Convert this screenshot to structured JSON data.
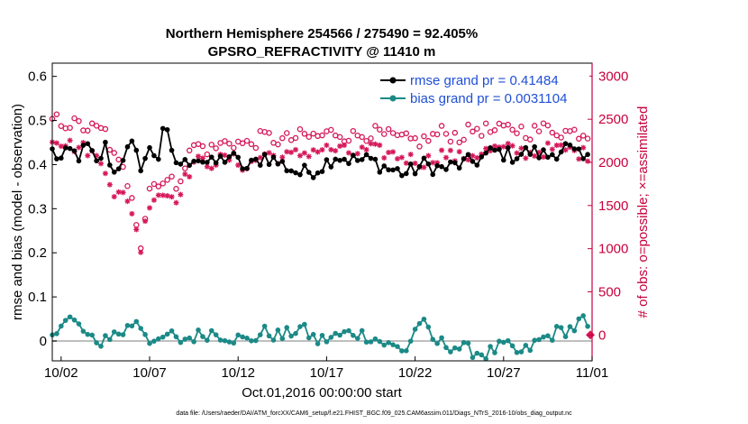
{
  "chart_data": {
    "type": "line",
    "title": "Northern Hemisphere 254566 / 275490 = 92.405%",
    "subtitle": "GPSRO_REFRACTIVITY @ 11410 m",
    "ylabel": "rmse and bias (model - observation)",
    "ylabel_right": "# of obs: o=possible; ×=assimilated",
    "xlabel": "Oct.01,2016 00:00:00 start",
    "footnote": "data file: /Users/raeder/DAI/ATM_forcXX/CAM6_setup/f.e21.FHIST_BGC.f09_025.CAM6assim.011/Diags_NTrS_2016-10/obs_diag_output.nc",
    "x_tick_labels": [
      "10/02",
      "10/07",
      "10/12",
      "10/17",
      "10/22",
      "10/27",
      "11/01"
    ],
    "x_tick_days": [
      1.5,
      6.5,
      11.5,
      16.5,
      21.5,
      26.5,
      31.5
    ],
    "xlim_days": [
      1,
      31.5
    ],
    "ylim": [
      -0.045,
      0.63
    ],
    "y_ticks": [
      0,
      0.1,
      0.2,
      0.3,
      0.4,
      0.5,
      0.6
    ],
    "y_tick_labels": [
      "0",
      "0.1",
      "0.2",
      "0.3",
      "0.4",
      "0.5",
      "0.6"
    ],
    "ylim_right": [
      -300,
      3150
    ],
    "y_ticks_right": [
      0,
      500,
      1000,
      1500,
      2000,
      2500,
      3000
    ],
    "y_tick_labels_right": [
      "0",
      "500",
      "1000",
      "1500",
      "2000",
      "2500",
      "3000"
    ],
    "grid": false,
    "legend": "top-right",
    "colors": {
      "rmse": "#000000",
      "bias": "#1b8a87",
      "obs": "#d6175a",
      "zero_line": "#bfbfbf",
      "right_axis": "#c8003c",
      "legend_text": "#1f4fd6"
    },
    "series": [
      {
        "name": "rmse grand pr = 0.41484",
        "axis": "left",
        "anchors": [
          [
            1.0,
            0.43
          ],
          [
            1.5,
            0.41
          ],
          [
            2.0,
            0.43
          ],
          [
            2.5,
            0.42
          ],
          [
            3.0,
            0.44
          ],
          [
            3.5,
            0.4
          ],
          [
            4.0,
            0.44
          ],
          [
            4.5,
            0.38
          ],
          [
            5.0,
            0.42
          ],
          [
            5.5,
            0.44
          ],
          [
            6.0,
            0.4
          ],
          [
            6.5,
            0.43
          ],
          [
            7.0,
            0.42
          ],
          [
            7.3,
            0.5
          ],
          [
            7.8,
            0.41
          ],
          [
            8.5,
            0.4
          ],
          [
            9.0,
            0.42
          ],
          [
            10.0,
            0.4
          ],
          [
            11.0,
            0.42
          ],
          [
            12.0,
            0.39
          ],
          [
            13.0,
            0.42
          ],
          [
            14.0,
            0.4
          ],
          [
            15.0,
            0.38
          ],
          [
            16.0,
            0.39
          ],
          [
            17.0,
            0.42
          ],
          [
            18.0,
            0.41
          ],
          [
            19.0,
            0.41
          ],
          [
            20.0,
            0.39
          ],
          [
            21.0,
            0.38
          ],
          [
            22.0,
            0.4
          ],
          [
            23.0,
            0.39
          ],
          [
            24.0,
            0.4
          ],
          [
            25.0,
            0.41
          ],
          [
            26.0,
            0.43
          ],
          [
            27.0,
            0.42
          ],
          [
            28.0,
            0.43
          ],
          [
            29.0,
            0.42
          ],
          [
            30.0,
            0.44
          ],
          [
            31.0,
            0.41
          ],
          [
            31.4,
            0.41
          ]
        ]
      },
      {
        "name": "bias grand pr = 0.0031104",
        "axis": "left",
        "anchors": [
          [
            1.0,
            0.02
          ],
          [
            1.4,
            0.04
          ],
          [
            2.0,
            0.05
          ],
          [
            2.6,
            0.03
          ],
          [
            3.0,
            0.01
          ],
          [
            3.5,
            -0.01
          ],
          [
            4.0,
            0.01
          ],
          [
            5.0,
            0.02
          ],
          [
            5.8,
            0.05
          ],
          [
            6.4,
            0.01
          ],
          [
            7.0,
            -0.01
          ],
          [
            7.6,
            0.02
          ],
          [
            8.0,
            0.0
          ],
          [
            9.0,
            0.01
          ],
          [
            10.0,
            0.02
          ],
          [
            11.0,
            0.01
          ],
          [
            12.0,
            0.0
          ],
          [
            13.0,
            0.02
          ],
          [
            14.0,
            0.01
          ],
          [
            15.0,
            0.03
          ],
          [
            16.0,
            0.0
          ],
          [
            17.0,
            0.01
          ],
          [
            18.0,
            0.02
          ],
          [
            19.0,
            0.01
          ],
          [
            20.0,
            -0.01
          ],
          [
            21.0,
            -0.02
          ],
          [
            21.8,
            0.05
          ],
          [
            22.5,
            0.0
          ],
          [
            23.5,
            -0.01
          ],
          [
            24.5,
            -0.02
          ],
          [
            25.5,
            -0.03
          ],
          [
            26.5,
            -0.01
          ],
          [
            27.5,
            -0.03
          ],
          [
            28.5,
            0.0
          ],
          [
            29.5,
            0.02
          ],
          [
            30.5,
            0.03
          ],
          [
            31.0,
            0.05
          ],
          [
            31.4,
            0.0
          ]
        ]
      },
      {
        "name": "possible",
        "axis": "right",
        "anchors": [
          [
            1.0,
            2500
          ],
          [
            2.0,
            2450
          ],
          [
            3.0,
            2400
          ],
          [
            4.0,
            2350
          ],
          [
            4.5,
            2050
          ],
          [
            5.0,
            1900
          ],
          [
            5.5,
            1650
          ],
          [
            6.0,
            1050
          ],
          [
            6.5,
            1700
          ],
          [
            7.0,
            1800
          ],
          [
            8.0,
            1750
          ],
          [
            9.0,
            2200
          ],
          [
            10.0,
            2150
          ],
          [
            11.0,
            2250
          ],
          [
            12.0,
            2200
          ],
          [
            13.0,
            2300
          ],
          [
            14.0,
            2250
          ],
          [
            15.0,
            2300
          ],
          [
            16.0,
            2300
          ],
          [
            17.0,
            2350
          ],
          [
            18.0,
            2300
          ],
          [
            19.0,
            2350
          ],
          [
            20.0,
            2300
          ],
          [
            21.0,
            2250
          ],
          [
            22.0,
            2250
          ],
          [
            23.0,
            2350
          ],
          [
            24.0,
            2300
          ],
          [
            25.0,
            2400
          ],
          [
            26.0,
            2350
          ],
          [
            27.0,
            2400
          ],
          [
            28.0,
            2350
          ],
          [
            29.0,
            2400
          ],
          [
            30.0,
            2350
          ],
          [
            31.0,
            2350
          ],
          [
            31.4,
            2300
          ]
        ]
      },
      {
        "name": "assimilated",
        "axis": "right",
        "anchors": [
          [
            1.0,
            2300
          ],
          [
            2.0,
            2200
          ],
          [
            3.0,
            2150
          ],
          [
            4.0,
            1950
          ],
          [
            4.5,
            1650
          ],
          [
            5.0,
            1600
          ],
          [
            5.5,
            1450
          ],
          [
            6.0,
            1000
          ],
          [
            6.5,
            1550
          ],
          [
            7.0,
            1650
          ],
          [
            8.0,
            1600
          ],
          [
            9.0,
            2000
          ],
          [
            10.0,
            2000
          ],
          [
            11.0,
            2050
          ],
          [
            12.0,
            1950
          ],
          [
            13.0,
            2100
          ],
          [
            14.0,
            2050
          ],
          [
            15.0,
            2100
          ],
          [
            16.0,
            2150
          ],
          [
            17.0,
            2150
          ],
          [
            18.0,
            2100
          ],
          [
            19.0,
            2150
          ],
          [
            20.0,
            2100
          ],
          [
            21.0,
            2050
          ],
          [
            22.0,
            2000
          ],
          [
            23.0,
            2100
          ],
          [
            24.0,
            2050
          ],
          [
            25.0,
            2100
          ],
          [
            26.0,
            2150
          ],
          [
            27.0,
            2150
          ],
          [
            28.0,
            2100
          ],
          [
            29.0,
            2150
          ],
          [
            30.0,
            2150
          ],
          [
            31.0,
            2100
          ],
          [
            31.4,
            2050
          ]
        ]
      }
    ],
    "end_marker": {
      "x_day": 31.4,
      "y_right": 0
    }
  }
}
